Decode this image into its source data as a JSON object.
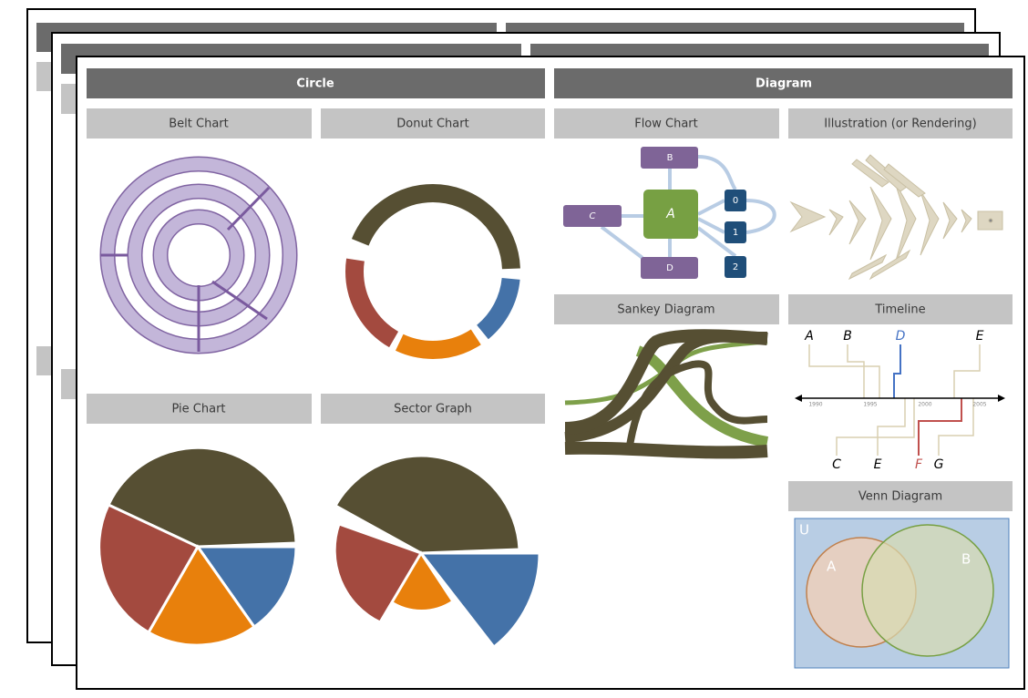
{
  "sections": {
    "circle": {
      "title": "Circle",
      "panels": [
        "Belt Chart",
        "Donut Chart",
        "Pie Chart",
        "Sector Graph"
      ]
    },
    "diagram": {
      "title": "Diagram",
      "panels": [
        "Flow Chart",
        "Illustration (or Rendering)",
        "Sankey Diagram",
        "Timeline",
        "Venn Diagram"
      ]
    }
  },
  "flow_chart": {
    "nodes": [
      "A",
      "B",
      "C",
      "D",
      "0",
      "1",
      "2"
    ]
  },
  "timeline": {
    "years": [
      "1990",
      "1995",
      "2000",
      "2005"
    ],
    "above": [
      "A",
      "B",
      "D",
      "E"
    ],
    "below": [
      "C",
      "E",
      "F",
      "G"
    ]
  },
  "venn": {
    "labels": [
      "U",
      "A",
      "B"
    ]
  }
}
